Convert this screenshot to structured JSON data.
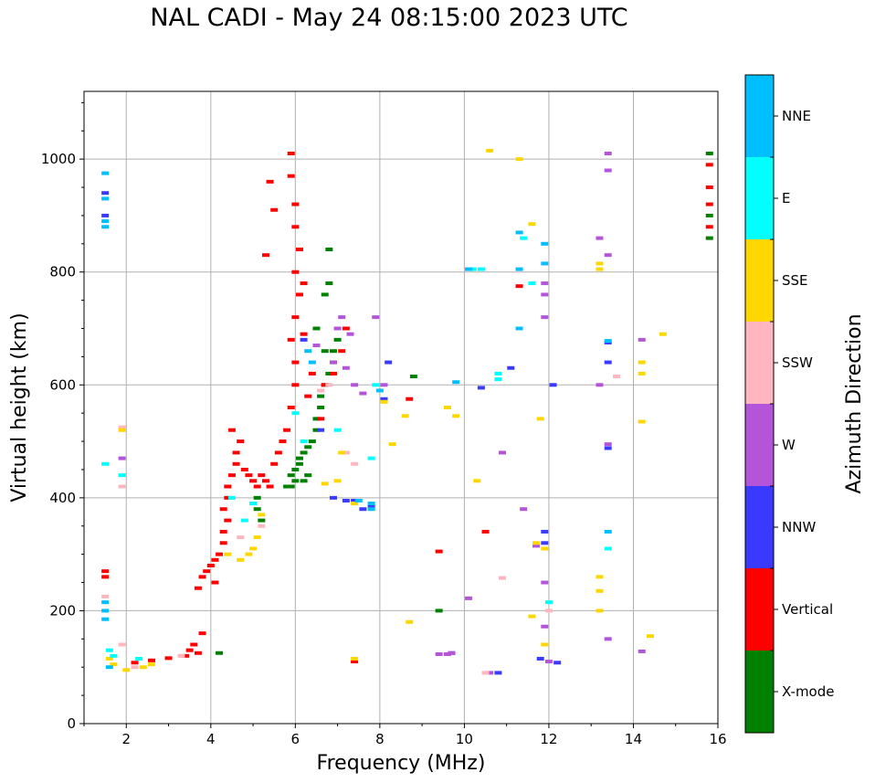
{
  "chart_data": {
    "type": "scatter",
    "title": "NAL CADI - May 24 08:15:00 2023 UTC",
    "xlabel": "Frequency (MHz)",
    "ylabel": "Virtual height (km)",
    "xlim": [
      1,
      16
    ],
    "ylim": [
      0,
      1120
    ],
    "xticks": [
      2,
      4,
      6,
      8,
      10,
      12,
      14,
      16
    ],
    "yticks": [
      0,
      200,
      400,
      600,
      800,
      1000
    ],
    "grid": true,
    "colorbar": {
      "label": "Azimuth Direction",
      "categories": [
        {
          "name": "X-mode",
          "color": "#008000"
        },
        {
          "name": "Vertical",
          "color": "#ff0000"
        },
        {
          "name": "NNW",
          "color": "#3a3aff"
        },
        {
          "name": "W",
          "color": "#b454d8"
        },
        {
          "name": "SSW",
          "color": "#ffb6c1"
        },
        {
          "name": "SSE",
          "color": "#ffd700"
        },
        {
          "name": "E",
          "color": "#00ffff"
        },
        {
          "name": "NNE",
          "color": "#00bfff"
        }
      ]
    },
    "series": [
      {
        "name": "X-mode",
        "points": [
          [
            4.2,
            125
          ],
          [
            5.1,
            380
          ],
          [
            5.1,
            400
          ],
          [
            5.2,
            360
          ],
          [
            5.8,
            420
          ],
          [
            5.9,
            440
          ],
          [
            6.0,
            450
          ],
          [
            6.1,
            460
          ],
          [
            6.1,
            470
          ],
          [
            6.2,
            480
          ],
          [
            6.3,
            490
          ],
          [
            6.4,
            500
          ],
          [
            6.5,
            520
          ],
          [
            6.5,
            540
          ],
          [
            6.6,
            560
          ],
          [
            6.6,
            580
          ],
          [
            6.7,
            600
          ],
          [
            6.8,
            620
          ],
          [
            6.9,
            640
          ],
          [
            6.9,
            660
          ],
          [
            7.0,
            680
          ],
          [
            6.7,
            760
          ],
          [
            6.8,
            780
          ],
          [
            6.8,
            840
          ],
          [
            6.5,
            700
          ],
          [
            6.7,
            660
          ],
          [
            8.8,
            615
          ],
          [
            9.4,
            200
          ],
          [
            15.8,
            1010
          ],
          [
            15.8,
            900
          ],
          [
            15.8,
            860
          ],
          [
            6.2,
            430
          ],
          [
            6.3,
            440
          ],
          [
            6.0,
            430
          ],
          [
            5.9,
            420
          ]
        ]
      },
      {
        "name": "Vertical",
        "points": [
          [
            1.5,
            270
          ],
          [
            1.5,
            260
          ],
          [
            2.2,
            108
          ],
          [
            2.6,
            112
          ],
          [
            3.0,
            116
          ],
          [
            3.4,
            120
          ],
          [
            3.5,
            130
          ],
          [
            3.6,
            140
          ],
          [
            3.7,
            125
          ],
          [
            3.8,
            160
          ],
          [
            3.7,
            240
          ],
          [
            3.8,
            260
          ],
          [
            3.9,
            270
          ],
          [
            4.0,
            280
          ],
          [
            4.1,
            250
          ],
          [
            4.1,
            290
          ],
          [
            4.2,
            300
          ],
          [
            4.3,
            320
          ],
          [
            4.3,
            340
          ],
          [
            4.4,
            360
          ],
          [
            4.3,
            380
          ],
          [
            4.4,
            400
          ],
          [
            4.4,
            420
          ],
          [
            4.5,
            440
          ],
          [
            4.6,
            460
          ],
          [
            4.6,
            480
          ],
          [
            4.7,
            500
          ],
          [
            4.5,
            520
          ],
          [
            4.8,
            450
          ],
          [
            4.9,
            440
          ],
          [
            5.0,
            430
          ],
          [
            5.1,
            420
          ],
          [
            5.2,
            440
          ],
          [
            5.3,
            430
          ],
          [
            5.4,
            420
          ],
          [
            5.5,
            460
          ],
          [
            5.6,
            480
          ],
          [
            5.7,
            500
          ],
          [
            5.8,
            520
          ],
          [
            5.9,
            560
          ],
          [
            6.0,
            600
          ],
          [
            6.0,
            640
          ],
          [
            5.9,
            680
          ],
          [
            6.0,
            720
          ],
          [
            6.1,
            760
          ],
          [
            6.0,
            800
          ],
          [
            6.1,
            840
          ],
          [
            6.0,
            880
          ],
          [
            6.0,
            920
          ],
          [
            5.9,
            970
          ],
          [
            5.9,
            1010
          ],
          [
            5.5,
            910
          ],
          [
            5.4,
            960
          ],
          [
            5.3,
            830
          ],
          [
            6.2,
            780
          ],
          [
            6.2,
            690
          ],
          [
            6.4,
            620
          ],
          [
            6.3,
            580
          ],
          [
            6.6,
            540
          ],
          [
            6.7,
            600
          ],
          [
            6.9,
            620
          ],
          [
            7.1,
            660
          ],
          [
            7.2,
            700
          ],
          [
            7.4,
            110
          ],
          [
            8.7,
            575
          ],
          [
            9.4,
            305
          ],
          [
            10.5,
            340
          ],
          [
            11.3,
            775
          ],
          [
            15.8,
            990
          ],
          [
            15.8,
            950
          ],
          [
            15.8,
            920
          ],
          [
            15.8,
            880
          ]
        ]
      },
      {
        "name": "NNW",
        "points": [
          [
            1.5,
            940
          ],
          [
            1.5,
            900
          ],
          [
            6.2,
            680
          ],
          [
            6.6,
            520
          ],
          [
            6.9,
            400
          ],
          [
            7.2,
            395
          ],
          [
            7.4,
            395
          ],
          [
            7.6,
            380
          ],
          [
            7.8,
            385
          ],
          [
            8.1,
            575
          ],
          [
            8.2,
            640
          ],
          [
            10.4,
            595
          ],
          [
            10.8,
            90
          ],
          [
            11.1,
            630
          ],
          [
            11.9,
            320
          ],
          [
            11.9,
            340
          ],
          [
            11.8,
            115
          ],
          [
            12.1,
            600
          ],
          [
            12.2,
            108
          ],
          [
            13.4,
            488
          ],
          [
            13.4,
            640
          ],
          [
            13.4,
            675
          ],
          [
            9.7,
            125
          ]
        ]
      },
      {
        "name": "W",
        "points": [
          [
            1.9,
            470
          ],
          [
            6.5,
            670
          ],
          [
            6.9,
            640
          ],
          [
            7.0,
            700
          ],
          [
            7.1,
            720
          ],
          [
            7.2,
            630
          ],
          [
            7.3,
            690
          ],
          [
            7.4,
            600
          ],
          [
            7.6,
            585
          ],
          [
            7.9,
            720
          ],
          [
            8.1,
            600
          ],
          [
            9.4,
            123
          ],
          [
            9.6,
            123
          ],
          [
            9.7,
            125
          ],
          [
            10.1,
            222
          ],
          [
            10.6,
            90
          ],
          [
            10.9,
            480
          ],
          [
            11.4,
            380
          ],
          [
            11.7,
            315
          ],
          [
            11.9,
            780
          ],
          [
            11.9,
            760
          ],
          [
            11.9,
            720
          ],
          [
            11.9,
            250
          ],
          [
            11.9,
            172
          ],
          [
            12.0,
            110
          ],
          [
            13.2,
            860
          ],
          [
            13.2,
            600
          ],
          [
            13.4,
            1010
          ],
          [
            13.4,
            980
          ],
          [
            13.4,
            830
          ],
          [
            13.4,
            495
          ],
          [
            13.4,
            150
          ],
          [
            14.2,
            680
          ],
          [
            14.2,
            128
          ]
        ]
      },
      {
        "name": "SSW",
        "points": [
          [
            1.5,
            225
          ],
          [
            1.9,
            525
          ],
          [
            1.9,
            420
          ],
          [
            1.9,
            140
          ],
          [
            2.2,
            100
          ],
          [
            3.3,
            120
          ],
          [
            4.7,
            330
          ],
          [
            5.2,
            350
          ],
          [
            6.6,
            590
          ],
          [
            6.8,
            600
          ],
          [
            7.2,
            480
          ],
          [
            7.4,
            460
          ],
          [
            10.5,
            90
          ],
          [
            10.9,
            258
          ],
          [
            13.6,
            615
          ],
          [
            12.0,
            200
          ]
        ]
      },
      {
        "name": "SSE",
        "points": [
          [
            1.9,
            520
          ],
          [
            1.6,
            115
          ],
          [
            1.7,
            105
          ],
          [
            2.0,
            95
          ],
          [
            2.4,
            100
          ],
          [
            2.6,
            105
          ],
          [
            4.4,
            300
          ],
          [
            4.7,
            290
          ],
          [
            4.9,
            300
          ],
          [
            5.1,
            330
          ],
          [
            5.2,
            370
          ],
          [
            5.0,
            310
          ],
          [
            6.7,
            425
          ],
          [
            7.0,
            430
          ],
          [
            7.1,
            480
          ],
          [
            7.4,
            115
          ],
          [
            7.4,
            390
          ],
          [
            8.1,
            570
          ],
          [
            8.3,
            495
          ],
          [
            8.6,
            545
          ],
          [
            8.7,
            180
          ],
          [
            9.6,
            560
          ],
          [
            9.8,
            545
          ],
          [
            10.3,
            430
          ],
          [
            10.6,
            1015
          ],
          [
            11.3,
            1000
          ],
          [
            11.6,
            885
          ],
          [
            11.8,
            540
          ],
          [
            11.7,
            320
          ],
          [
            11.9,
            310
          ],
          [
            11.9,
            140
          ],
          [
            11.6,
            190
          ],
          [
            13.2,
            815
          ],
          [
            13.2,
            805
          ],
          [
            13.2,
            260
          ],
          [
            13.2,
            235
          ],
          [
            13.2,
            200
          ],
          [
            14.2,
            640
          ],
          [
            14.2,
            620
          ],
          [
            14.2,
            535
          ],
          [
            14.4,
            155
          ],
          [
            14.7,
            690
          ]
        ]
      },
      {
        "name": "E",
        "points": [
          [
            1.5,
            460
          ],
          [
            1.6,
            130
          ],
          [
            1.7,
            120
          ],
          [
            1.9,
            440
          ],
          [
            2.3,
            115
          ],
          [
            4.5,
            400
          ],
          [
            4.8,
            360
          ],
          [
            5.0,
            390
          ],
          [
            6.0,
            550
          ],
          [
            6.2,
            500
          ],
          [
            7.0,
            520
          ],
          [
            7.8,
            470
          ],
          [
            7.9,
            600
          ],
          [
            10.2,
            805
          ],
          [
            10.4,
            805
          ],
          [
            10.8,
            620
          ],
          [
            10.8,
            610
          ],
          [
            11.4,
            860
          ],
          [
            11.6,
            780
          ],
          [
            12.0,
            215
          ],
          [
            13.4,
            310
          ]
        ]
      },
      {
        "name": "NNE",
        "points": [
          [
            1.5,
            975
          ],
          [
            1.5,
            930
          ],
          [
            1.5,
            890
          ],
          [
            1.5,
            880
          ],
          [
            1.5,
            215
          ],
          [
            1.5,
            200
          ],
          [
            1.5,
            185
          ],
          [
            1.6,
            100
          ],
          [
            6.3,
            660
          ],
          [
            6.4,
            640
          ],
          [
            7.5,
            395
          ],
          [
            7.8,
            390
          ],
          [
            7.8,
            380
          ],
          [
            8.0,
            590
          ],
          [
            9.8,
            605
          ],
          [
            10.1,
            805
          ],
          [
            11.3,
            870
          ],
          [
            11.3,
            700
          ],
          [
            11.3,
            805
          ],
          [
            11.9,
            850
          ],
          [
            11.9,
            815
          ],
          [
            13.4,
            678
          ],
          [
            13.4,
            340
          ]
        ]
      }
    ]
  }
}
